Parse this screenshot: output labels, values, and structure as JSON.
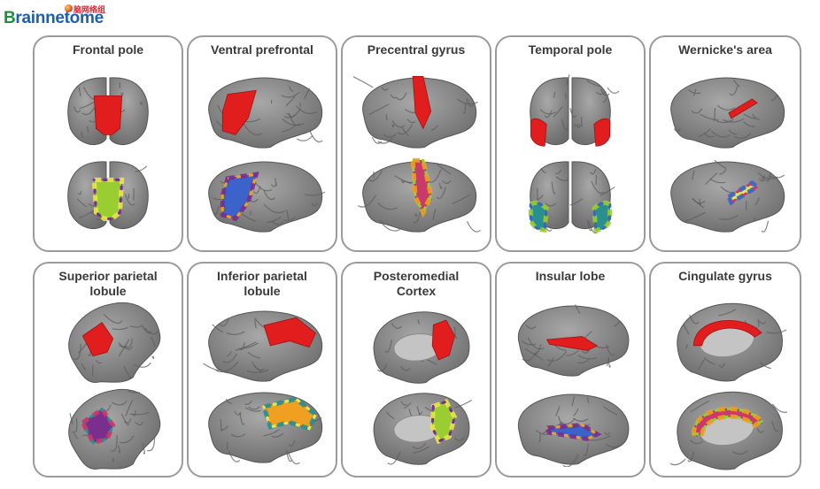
{
  "logo": {
    "text_b": "B",
    "text_rest": "rainnetome",
    "chinese": "脑网络组"
  },
  "panels": [
    {
      "title": "Frontal pole"
    },
    {
      "title": "Ventral prefrontal"
    },
    {
      "title": "Precentral gyrus"
    },
    {
      "title": "Temporal pole"
    },
    {
      "title": "Wernicke's area"
    },
    {
      "title": "Superior parietal lobule"
    },
    {
      "title": "Inferior parietal lobule"
    },
    {
      "title": "Posteromedial Cortex"
    },
    {
      "title": "Insular lobe"
    },
    {
      "title": "Cingulate gyrus"
    }
  ],
  "colors": {
    "cortex": "#8a8a8a",
    "sulcus": "#5e5e5e",
    "highlight": "#e21d1d",
    "subregions": [
      "#2a8f8f",
      "#9acd32",
      "#e8e84a",
      "#3b63c9",
      "#7a2f8f",
      "#c83a6a",
      "#f0a020"
    ]
  }
}
